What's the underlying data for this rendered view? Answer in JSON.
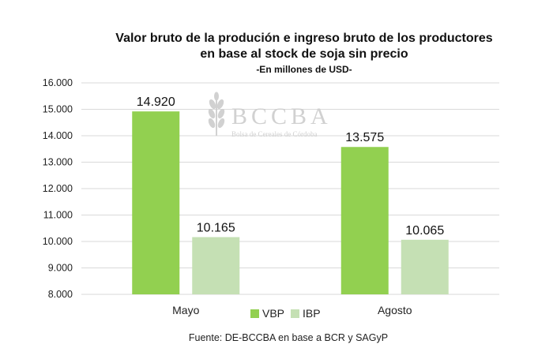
{
  "chart_data": {
    "type": "bar",
    "title_lines": [
      "Valor bruto de la produción e ingreso bruto de los productores",
      "en base al stock de soja sin precio"
    ],
    "subtitle": "-En millones de USD-",
    "categories": [
      "Mayo",
      "Agosto"
    ],
    "series": [
      {
        "name": "VBP",
        "values": [
          14920,
          13575
        ],
        "labels": [
          "14.920",
          "13.575"
        ],
        "color": "#92d050"
      },
      {
        "name": "IBP",
        "values": [
          10165,
          10065
        ],
        "labels": [
          "10.165",
          "10.065"
        ],
        "color": "#c5e0b4"
      }
    ],
    "ylim": [
      8000,
      16000
    ],
    "yticks": [
      8000,
      9000,
      10000,
      11000,
      12000,
      13000,
      14000,
      15000,
      16000
    ],
    "ytick_labels": [
      "8.000",
      "9.000",
      "10.000",
      "11.000",
      "12.000",
      "13.000",
      "14.000",
      "15.000",
      "16.000"
    ],
    "grid": true,
    "legend_position": "bottom-center",
    "xlabel": "",
    "ylabel": "",
    "source": "Fuente: DE-BCCBA en base a BCR y SAGyP",
    "watermark": {
      "logo_text": "BCCBA",
      "logo_subtext": "Bolsa de Cereales de Córdoba"
    }
  }
}
